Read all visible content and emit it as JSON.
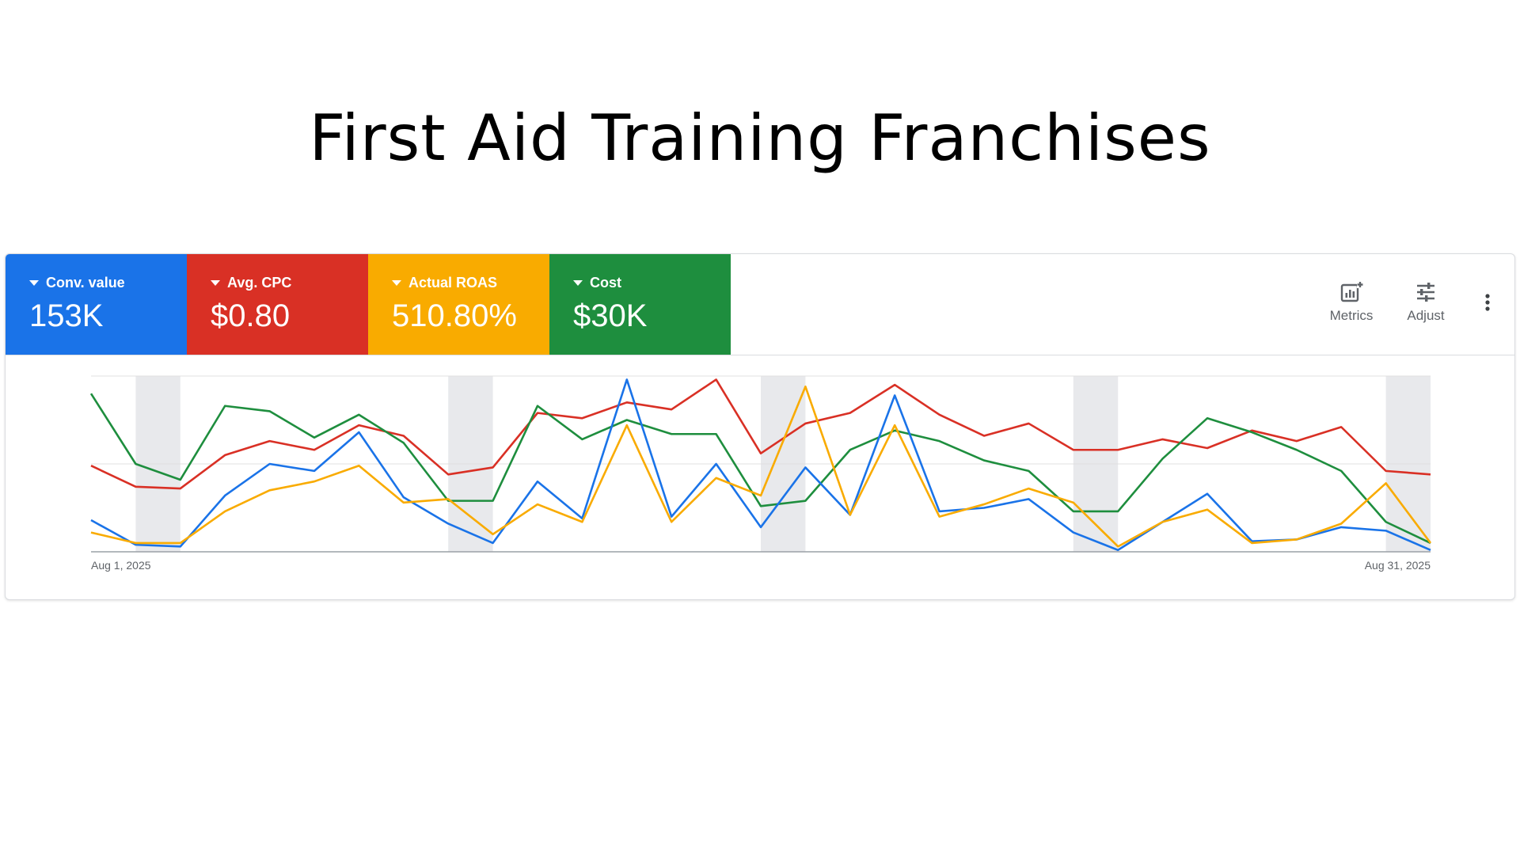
{
  "page": {
    "title": "First Aid Training Franchises"
  },
  "tiles": [
    {
      "label": "Conv. value",
      "value": "153K",
      "color": "#1a73e8"
    },
    {
      "label": "Avg. CPC",
      "value": "$0.80",
      "color": "#d93025"
    },
    {
      "label": "Actual ROAS",
      "value": "510.80%",
      "color": "#f9ab00"
    },
    {
      "label": "Cost",
      "value": "$30K",
      "color": "#1e8e3e"
    }
  ],
  "toolbar": {
    "metrics_label": "Metrics",
    "metrics_icon": "metrics-icon",
    "adjust_label": "Adjust",
    "adjust_icon": "adjust-icon",
    "more_icon": "more-vert-icon"
  },
  "chart_data": {
    "type": "line",
    "x_start_label": "Aug 1, 2025",
    "x_end_label": "Aug 31, 2025",
    "x": [
      "Aug 1",
      "Aug 2",
      "Aug 3",
      "Aug 4",
      "Aug 5",
      "Aug 6",
      "Aug 7",
      "Aug 8",
      "Aug 9",
      "Aug 10",
      "Aug 11",
      "Aug 12",
      "Aug 13",
      "Aug 14",
      "Aug 15",
      "Aug 16",
      "Aug 17",
      "Aug 18",
      "Aug 19",
      "Aug 20",
      "Aug 21",
      "Aug 22",
      "Aug 23",
      "Aug 24",
      "Aug 25",
      "Aug 26",
      "Aug 27",
      "Aug 28",
      "Aug 29",
      "Aug 30",
      "Aug 31"
    ],
    "ylim": [
      0,
      100
    ],
    "grid": true,
    "weekend_shading": [
      [
        2,
        3
      ],
      [
        9,
        10
      ],
      [
        16,
        17
      ],
      [
        23,
        24
      ],
      [
        30,
        31
      ]
    ],
    "series": [
      {
        "color": "#d93025",
        "values": [
          49,
          37,
          36,
          55,
          63,
          58,
          72,
          66,
          44,
          48,
          79,
          76,
          85,
          81,
          98,
          56,
          73,
          79,
          95,
          78,
          66,
          73,
          58,
          58,
          64,
          59,
          69,
          63,
          71,
          46,
          44
        ]
      },
      {
        "color": "#1e8e3e",
        "values": [
          90,
          50,
          41,
          83,
          80,
          65,
          78,
          62,
          29,
          29,
          83,
          64,
          75,
          67,
          67,
          26,
          29,
          58,
          69,
          63,
          52,
          46,
          23,
          23,
          53,
          76,
          68,
          58,
          46,
          17,
          5
        ]
      },
      {
        "color": "#1a73e8",
        "values": [
          18,
          4,
          3,
          32,
          50,
          46,
          68,
          31,
          16,
          5,
          40,
          19,
          98,
          20,
          50,
          14,
          48,
          21,
          89,
          23,
          25,
          30,
          11,
          1,
          17,
          33,
          6,
          7,
          14,
          12,
          1
        ]
      },
      {
        "color": "#f9ab00",
        "values": [
          11,
          5,
          5,
          23,
          35,
          40,
          49,
          28,
          30,
          10,
          27,
          17,
          72,
          17,
          42,
          32,
          94,
          21,
          72,
          20,
          27,
          36,
          28,
          3,
          17,
          24,
          5,
          7,
          16,
          39,
          5
        ]
      }
    ]
  }
}
